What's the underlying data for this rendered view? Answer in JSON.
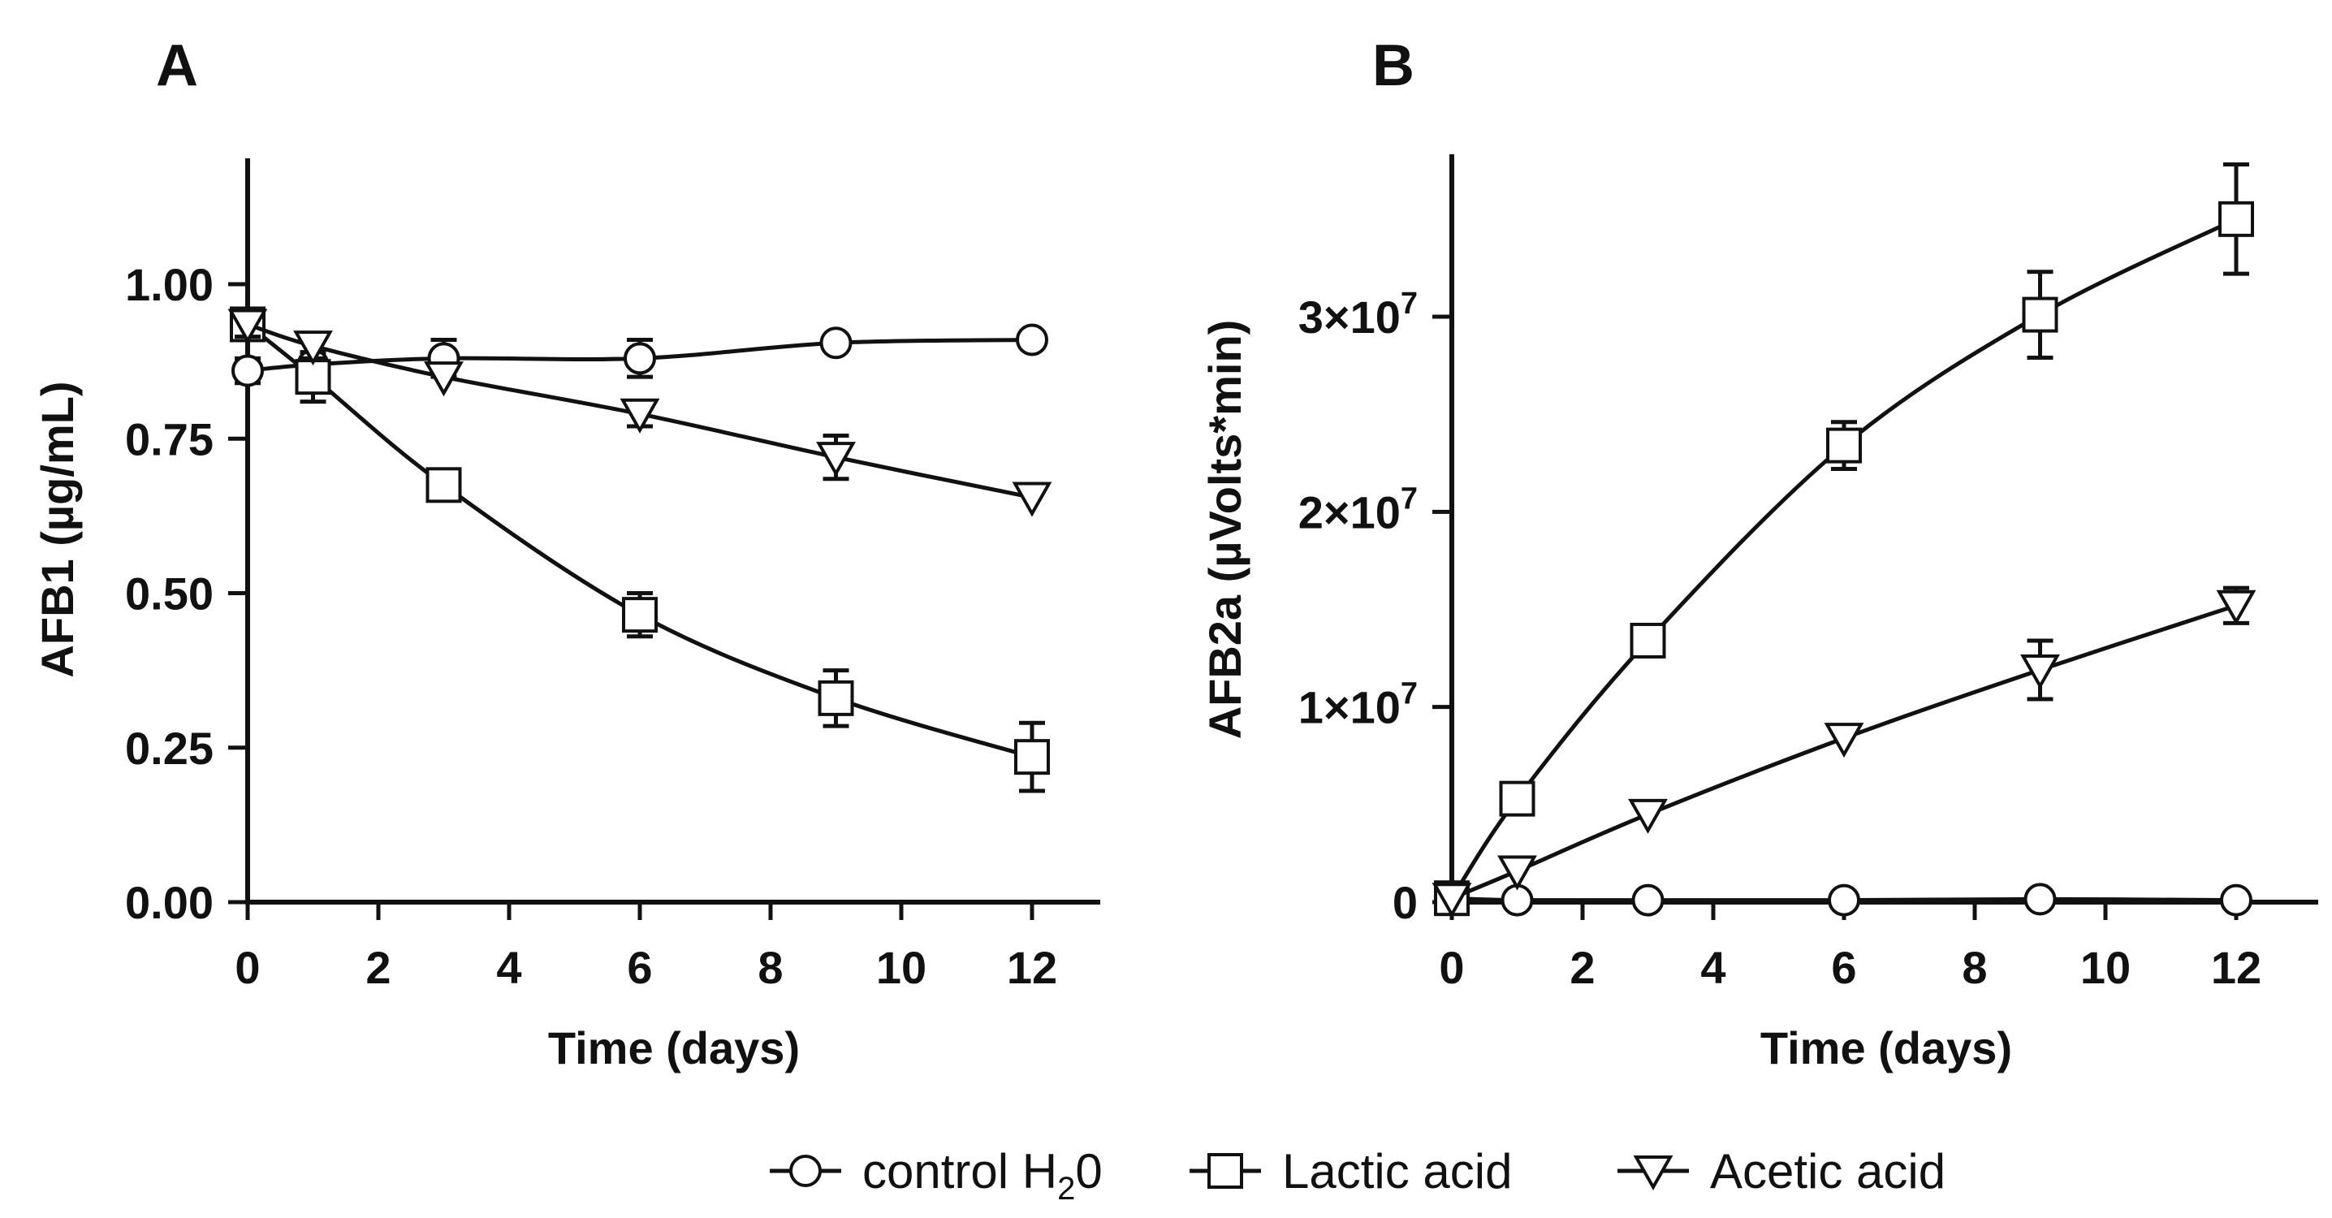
{
  "chart_data": [
    {
      "panel": "A",
      "type": "scatter",
      "xlabel": "Time (days)",
      "ylabel": "AFB1 (µg/mL)",
      "xlim": [
        0,
        13
      ],
      "ylim": [
        0,
        1.2
      ],
      "xticks": [
        0,
        2,
        4,
        6,
        8,
        10,
        12
      ],
      "xtick_labels": [
        "0",
        "2",
        "4",
        "6",
        "8",
        "10",
        "12"
      ],
      "yticks": [
        0,
        0.25,
        0.5,
        0.75,
        1.0
      ],
      "ytick_labels": [
        "0.00",
        "0.25",
        "0.50",
        "0.75",
        "1.00"
      ],
      "series": [
        {
          "name": "control H20",
          "marker": "circle",
          "x": [
            0,
            1,
            3,
            6,
            9,
            12
          ],
          "y": [
            0.86,
            0.87,
            0.88,
            0.88,
            0.905,
            0.91
          ],
          "err": [
            0.02,
            0.02,
            0.03,
            0.03,
            0.0,
            0.0
          ],
          "fit": [
            0.86,
            0.91
          ]
        },
        {
          "name": "Lactic acid",
          "marker": "square",
          "x": [
            0,
            1,
            3,
            6,
            9,
            12
          ],
          "y": [
            0.935,
            0.85,
            0.675,
            0.465,
            0.33,
            0.235
          ],
          "err": [
            0.02,
            0.04,
            0.0,
            0.035,
            0.045,
            0.055
          ],
          "fit": [
            0.935,
            0.235
          ]
        },
        {
          "name": "Acetic acid",
          "marker": "triangle-down",
          "x": [
            0,
            1,
            3,
            6,
            9,
            12
          ],
          "y": [
            0.935,
            0.9,
            0.85,
            0.79,
            0.72,
            0.655
          ],
          "err": [
            0.02,
            0.02,
            0.0,
            0.02,
            0.035,
            0.0
          ],
          "fit": [
            0.94,
            0.65
          ]
        }
      ]
    },
    {
      "panel": "B",
      "type": "scatter",
      "xlabel": "Time (days)",
      "ylabel": "AFB2a (µVolts*min)",
      "xlim": [
        0,
        13
      ],
      "ylim": [
        0,
        38000000
      ],
      "xticks": [
        0,
        2,
        4,
        6,
        8,
        10,
        12
      ],
      "xtick_labels": [
        "0",
        "2",
        "4",
        "6",
        "8",
        "10",
        "12"
      ],
      "yticks": [
        0,
        10000000,
        20000000,
        30000000
      ],
      "ytick_labels": [
        {
          "base": "0",
          "exp": ""
        },
        {
          "base": "1×10",
          "exp": "7"
        },
        {
          "base": "2×10",
          "exp": "7"
        },
        {
          "base": "3×10",
          "exp": "7"
        }
      ],
      "series": [
        {
          "name": "control H20",
          "marker": "circle",
          "x": [
            0,
            1,
            3,
            6,
            9,
            12
          ],
          "y": [
            200000,
            100000,
            100000,
            100000,
            150000,
            100000
          ],
          "err": [
            0,
            0,
            0,
            0,
            0,
            0
          ],
          "fit": [
            150000,
            100000
          ]
        },
        {
          "name": "Lactic acid",
          "marker": "square",
          "x": [
            0,
            1,
            3,
            6,
            9,
            12
          ],
          "y": [
            200000,
            5300000,
            13400000,
            23400000,
            30100000,
            35000000
          ],
          "err": [
            0,
            0,
            800000,
            1200000,
            2200000,
            2800000
          ],
          "fit": [
            200000,
            35000000
          ]
        },
        {
          "name": "Acetic acid",
          "marker": "triangle-down",
          "x": [
            0,
            1,
            3,
            6,
            9,
            12
          ],
          "y": [
            200000,
            1600000,
            4500000,
            8400000,
            11900000,
            15200000
          ],
          "err": [
            0,
            0,
            0,
            0,
            1500000,
            900000
          ],
          "fit": [
            200000,
            15200000
          ]
        }
      ]
    }
  ],
  "figure": {
    "panel_a_label": "A",
    "panel_b_label": "B"
  },
  "legend": {
    "items": [
      {
        "marker": "circle",
        "label_main": "control H",
        "label_sub": "2",
        "label_tail": "0"
      },
      {
        "marker": "square",
        "label_main": "Lactic acid",
        "label_sub": "",
        "label_tail": ""
      },
      {
        "marker": "triangle-down",
        "label_main": "Acetic acid",
        "label_sub": "",
        "label_tail": ""
      }
    ]
  }
}
